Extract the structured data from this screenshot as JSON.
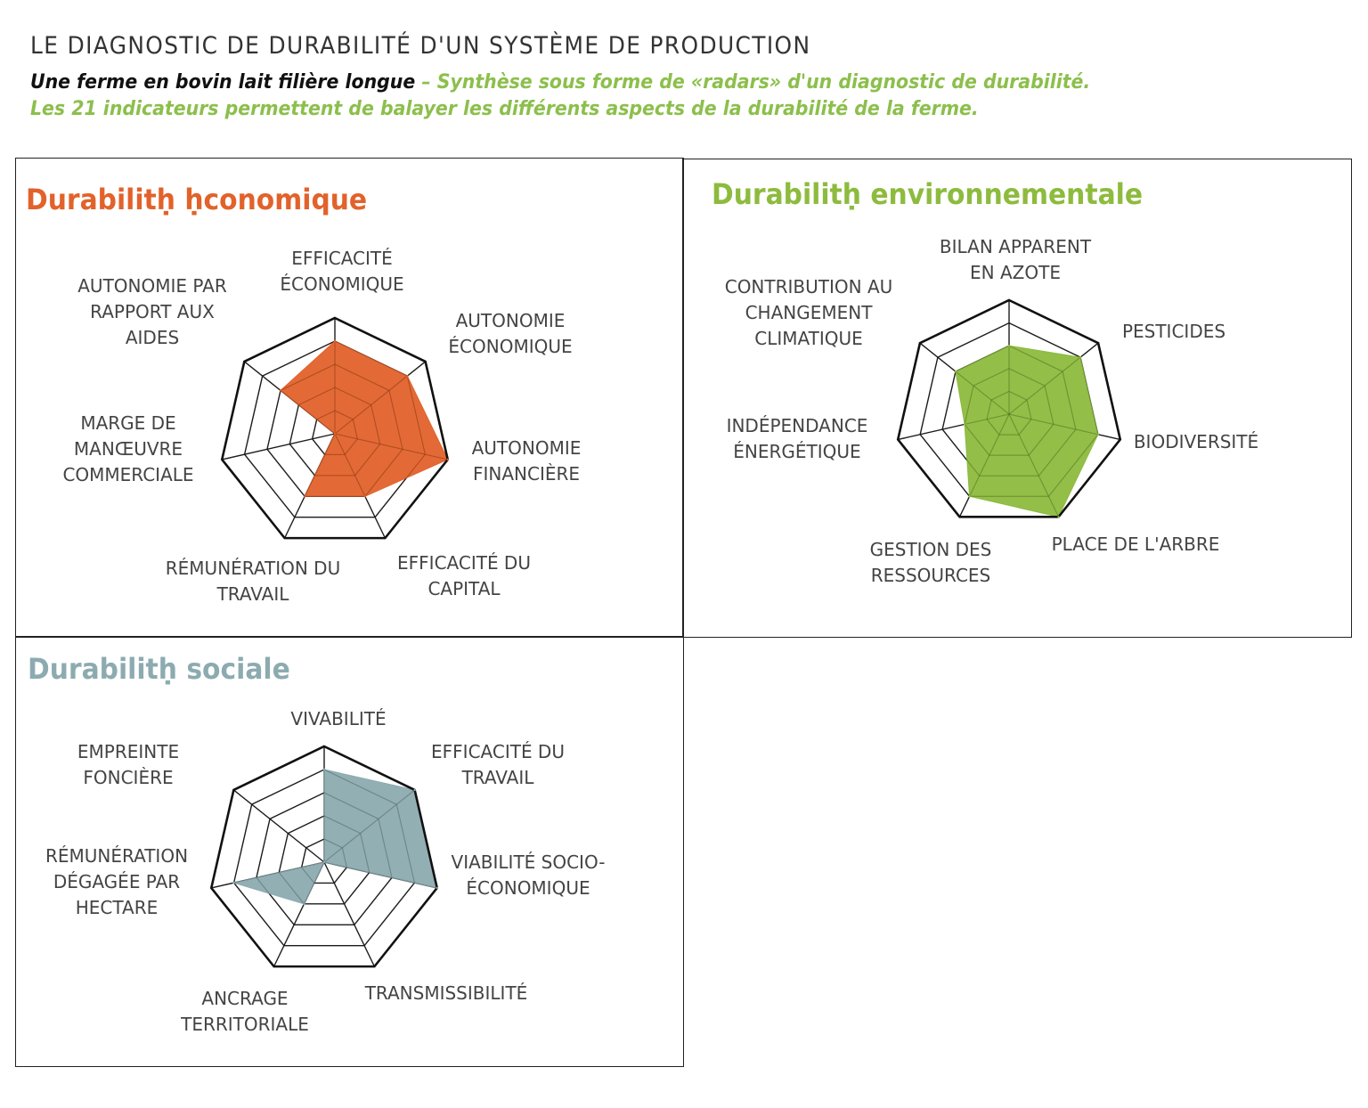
{
  "header": {
    "title": "LE DIAGNOSTIC DE DURABILITÉ D'UN SYSTÈME DE PRODUCTION",
    "subtitle_black": "Une ferme en bovin lait filière longue",
    "subtitle_green": "– Synthèse sous forme de «radars» d'un diagnostic de durabilité.",
    "subtitle_line2": "Les 21 indicateurs permettent de balayer les différents aspects de la durabilité de la ferme."
  },
  "colors": {
    "economic": "#e2622b",
    "environmental": "#8dbb3e",
    "social": "#8cabb0",
    "header_green": "#8cbf4c"
  },
  "chart_data": [
    {
      "type": "radar",
      "title": "Durabilitḥ ḥconomique",
      "axes": [
        "EFFICACITÉ ÉCONOMIQUE",
        "AUTONOMIE ÉCONOMIQUE",
        "AUTONOMIE FINANCIÈRE",
        "EFFICACITÉ DU CAPITAL",
        "RÉMUNÉRATION DU TRAVAIL",
        "MARGE DE MANŒUVRE COMMERCIALE",
        "AUTONOMIE PAR RAPPORT AUX AIDES"
      ],
      "labels": [
        "EFFICACITÉ\nÉCONOMIQUE",
        "AUTONOMIE\nÉCONOMIQUE",
        "AUTONOMIE\nFINANCIÈRE",
        "EFFICACITÉ DU\nCAPITAL",
        "RÉMUNÉRATION DU\nTRAVAIL",
        "MARGE DE\nMANŒUVRE\nCOMMERCIALE",
        "AUTONOMIE PAR\nRAPPORT AUX\nAIDES"
      ],
      "values": [
        0.8,
        0.8,
        1.0,
        0.6,
        0.6,
        0.0,
        0.6
      ],
      "rlim": [
        0,
        1
      ],
      "rings": 5
    },
    {
      "type": "radar",
      "title": "Durabilitḥ environnementale",
      "axes": [
        "BILAN APPARENT EN AZOTE",
        "PESTICIDES",
        "BIODIVERSITÉ",
        "PLACE DE L'ARBRE",
        "GESTION DES RESSOURCES",
        "INDÉPENDANCE ÉNERGÉTIQUE",
        "CONTRIBUTION AU CHANGEMENT CLIMATIQUE"
      ],
      "labels": [
        "BILAN APPARENT\nEN AZOTE",
        "PESTICIDES",
        "BIODIVERSITÉ",
        "PLACE DE L'ARBRE",
        "GESTION DES\nRESSOURCES",
        "INDÉPENDANCE\nÉNERGÉTIQUE",
        "CONTRIBUTION AU\nCHANGEMENT\nCLIMATIQUE"
      ],
      "values": [
        0.6,
        0.8,
        0.8,
        1.0,
        0.8,
        0.4,
        0.6
      ],
      "rlim": [
        0,
        1
      ],
      "rings": 5
    },
    {
      "type": "radar",
      "title": "Durabilitḥ sociale",
      "axes": [
        "VIVABILITÉ",
        "EFFICACITÉ DU TRAVAIL",
        "VIABILITÉ SOCIO-ÉCONOMIQUE",
        "TRANSMISSIBILITÉ",
        "ANCRAGE TERRITORIALE",
        "RÉMUNÉRATION DÉGAGÉE PAR HECTARE",
        "EMPREINTE FONCIÈRE"
      ],
      "labels": [
        "VIVABILITÉ",
        "EFFICACITÉ DU\nTRAVAIL",
        "VIABILITÉ SOCIO-\nÉCONOMIQUE",
        "TRANSMISSIBILITÉ",
        "ANCRAGE\nTERRITORIALE",
        "RÉMUNÉRATION\nDÉGAGÉE PAR\nHECTARE",
        "EMPREINTE\nFONCIÈRE"
      ],
      "values": [
        0.8,
        1.0,
        1.0,
        0.0,
        0.4,
        0.8,
        0.0
      ],
      "rlim": [
        0,
        1
      ],
      "rings": 5
    }
  ]
}
